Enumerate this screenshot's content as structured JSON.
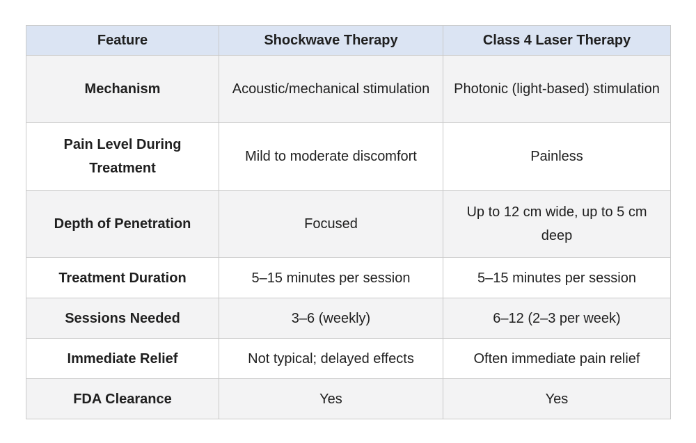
{
  "table": {
    "headers": [
      "Feature",
      "Shockwave Therapy",
      "Class 4 Laser Therapy"
    ],
    "rows": [
      {
        "feature": "Mechanism",
        "shockwave": "Acoustic/mechanical stimulation",
        "laser": "Photonic (light-based) stimulation"
      },
      {
        "feature": "Pain Level During Treatment",
        "shockwave": "Mild to moderate discomfort",
        "laser": "Painless"
      },
      {
        "feature": "Depth of Penetration",
        "shockwave": "Focused",
        "laser": "Up to 12 cm wide, up to 5 cm deep"
      },
      {
        "feature": "Treatment Duration",
        "shockwave": "5–15 minutes per session",
        "laser": "5–15 minutes per session"
      },
      {
        "feature": "Sessions Needed",
        "shockwave": "3–6 (weekly)",
        "laser": "6–12 (2–3 per week)"
      },
      {
        "feature": "Immediate Relief",
        "shockwave": "Not typical; delayed effects",
        "laser": "Often immediate pain relief"
      },
      {
        "feature": "FDA Clearance",
        "shockwave": "Yes",
        "laser": "Yes"
      }
    ]
  },
  "colors": {
    "header_background": "#dbe4f3",
    "striped_row_background": "#f3f3f4",
    "border": "#c9c9c9"
  }
}
